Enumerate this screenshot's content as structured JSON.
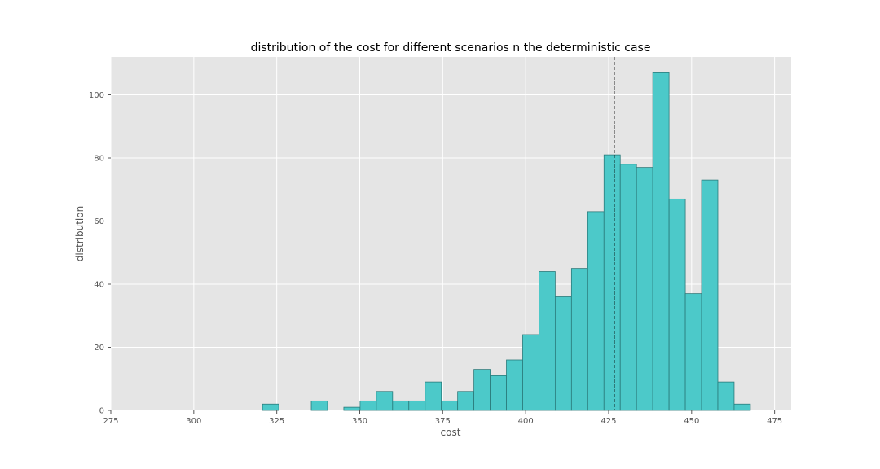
{
  "chart_data": {
    "type": "bar",
    "title": "distribution of the cost for different scenarios n the deterministic case",
    "xlabel": "cost",
    "ylabel": "distribution",
    "xlim": [
      275,
      480
    ],
    "ylim": [
      0,
      112
    ],
    "x_ticks": [
      275,
      300,
      325,
      350,
      375,
      400,
      425,
      450,
      475
    ],
    "y_ticks": [
      0,
      20,
      40,
      60,
      80,
      100
    ],
    "grid": true,
    "bin_width": 4.9,
    "bins": [
      {
        "start": 320.7,
        "count": 2
      },
      {
        "start": 325.6,
        "count": 0
      },
      {
        "start": 330.5,
        "count": 0
      },
      {
        "start": 335.4,
        "count": 3
      },
      {
        "start": 340.3,
        "count": 0
      },
      {
        "start": 345.2,
        "count": 1
      },
      {
        "start": 350.1,
        "count": 3
      },
      {
        "start": 355.0,
        "count": 6
      },
      {
        "start": 359.9,
        "count": 3
      },
      {
        "start": 364.8,
        "count": 3
      },
      {
        "start": 369.7,
        "count": 9
      },
      {
        "start": 374.6,
        "count": 3
      },
      {
        "start": 379.5,
        "count": 6
      },
      {
        "start": 384.4,
        "count": 13
      },
      {
        "start": 389.3,
        "count": 11
      },
      {
        "start": 394.2,
        "count": 16
      },
      {
        "start": 399.1,
        "count": 24
      },
      {
        "start": 404.0,
        "count": 44
      },
      {
        "start": 408.9,
        "count": 36
      },
      {
        "start": 413.8,
        "count": 45
      },
      {
        "start": 418.7,
        "count": 63
      },
      {
        "start": 423.6,
        "count": 81
      },
      {
        "start": 428.5,
        "count": 78
      },
      {
        "start": 433.4,
        "count": 77
      },
      {
        "start": 438.3,
        "count": 107
      },
      {
        "start": 443.2,
        "count": 67
      },
      {
        "start": 448.1,
        "count": 37
      },
      {
        "start": 453.0,
        "count": 73
      },
      {
        "start": 457.9,
        "count": 9
      },
      {
        "start": 462.8,
        "count": 2
      }
    ],
    "reference_line": {
      "x": 426.7,
      "style": "dashed",
      "color": "#000000"
    },
    "colors": {
      "bar_fill": "#4cc9c9",
      "bar_edge": "#2a7a7a",
      "plot_bg": "#e5e5e5",
      "grid": "#ffffff",
      "page_bg": "#ffffff"
    }
  }
}
